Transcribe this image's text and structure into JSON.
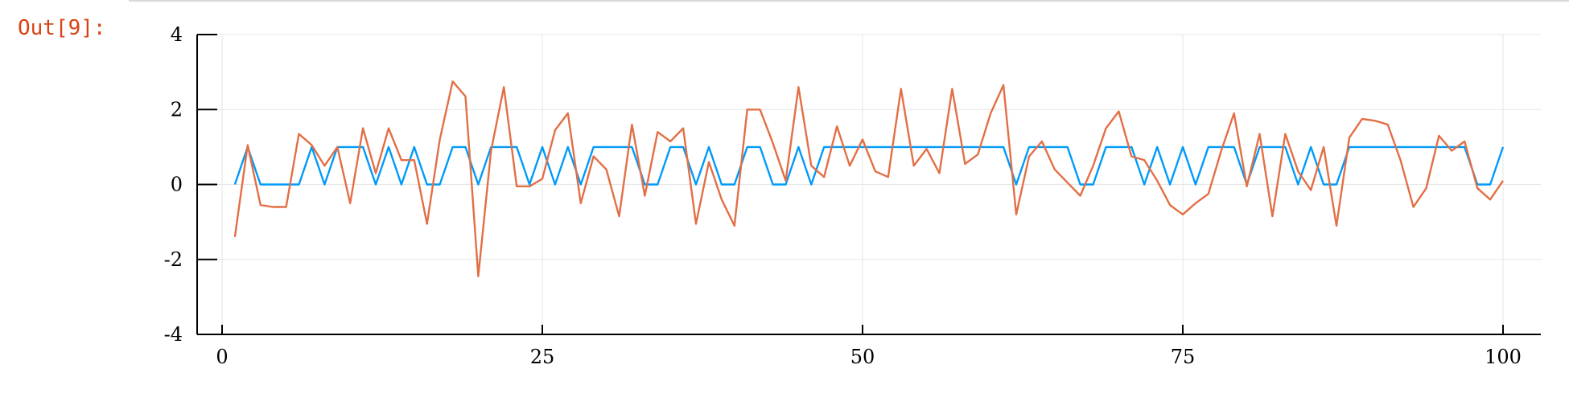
{
  "cell": {
    "prompt": "Out[9]:"
  },
  "colors": {
    "series1": "#009af9",
    "series2": "#e26f46",
    "grid": "#e6e6e6",
    "axis": "#000000"
  },
  "chart_data": {
    "type": "line",
    "title": "",
    "xlabel": "",
    "ylabel": "",
    "xlim": [
      0,
      100
    ],
    "ylim": [
      -4,
      4
    ],
    "xticks": [
      0,
      25,
      50,
      75,
      100
    ],
    "yticks": [
      -4,
      -2,
      0,
      2,
      4
    ],
    "grid": true,
    "legend": "none",
    "series": [
      {
        "color": "#009af9",
        "x": [
          1,
          2,
          3,
          4,
          5,
          6,
          7,
          8,
          9,
          10,
          11,
          12,
          13,
          14,
          15,
          16,
          17,
          18,
          19,
          20,
          21,
          22,
          23,
          24,
          25,
          26,
          27,
          28,
          29,
          30,
          31,
          32,
          33,
          34,
          35,
          36,
          37,
          38,
          39,
          40,
          41,
          42,
          43,
          44,
          45,
          46,
          47,
          48,
          49,
          50,
          51,
          52,
          53,
          54,
          55,
          56,
          57,
          58,
          59,
          60,
          61,
          62,
          63,
          64,
          65,
          66,
          67,
          68,
          69,
          70,
          71,
          72,
          73,
          74,
          75,
          76,
          77,
          78,
          79,
          80,
          81,
          82,
          83,
          84,
          85,
          86,
          87,
          88,
          89,
          90,
          91,
          92,
          93,
          94,
          95,
          96,
          97,
          98,
          99,
          100
        ],
        "values": [
          0,
          1,
          0,
          0,
          0,
          0,
          1,
          0,
          1,
          1,
          1,
          0,
          1,
          0,
          1,
          0,
          0,
          1,
          1,
          0,
          1,
          1,
          1,
          0,
          1,
          0,
          1,
          0,
          1,
          1,
          1,
          1,
          0,
          0,
          1,
          1,
          0,
          1,
          0,
          0,
          1,
          1,
          0,
          0,
          1,
          0,
          1,
          1,
          1,
          1,
          1,
          1,
          1,
          1,
          1,
          1,
          1,
          1,
          1,
          1,
          1,
          0,
          1,
          1,
          1,
          1,
          0,
          0,
          1,
          1,
          1,
          0,
          1,
          0,
          1,
          0,
          1,
          1,
          1,
          0,
          1,
          1,
          1,
          0,
          1,
          0,
          0,
          1,
          1,
          1,
          1,
          1,
          1,
          1,
          1,
          1,
          1,
          0,
          0,
          1
        ]
      },
      {
        "color": "#e26f46",
        "x": [
          1,
          2,
          3,
          4,
          5,
          6,
          7,
          8,
          9,
          10,
          11,
          12,
          13,
          14,
          15,
          16,
          17,
          18,
          19,
          20,
          21,
          22,
          23,
          24,
          25,
          26,
          27,
          28,
          29,
          30,
          31,
          32,
          33,
          34,
          35,
          36,
          37,
          38,
          39,
          40,
          41,
          42,
          43,
          44,
          45,
          46,
          47,
          48,
          49,
          50,
          51,
          52,
          53,
          54,
          55,
          56,
          57,
          58,
          59,
          60,
          61,
          62,
          63,
          64,
          65,
          66,
          67,
          68,
          69,
          70,
          71,
          72,
          73,
          74,
          75,
          76,
          77,
          78,
          79,
          80,
          81,
          82,
          83,
          84,
          85,
          86,
          87,
          88,
          89,
          90,
          91,
          92,
          93,
          94,
          95,
          96,
          97,
          98,
          99,
          100
        ],
        "values": [
          -1.4,
          1.05,
          -0.55,
          -0.6,
          -0.6,
          1.35,
          1.05,
          0.5,
          1.0,
          -0.5,
          1.5,
          0.3,
          1.5,
          0.65,
          0.65,
          -1.05,
          1.2,
          2.75,
          2.35,
          -2.45,
          0.9,
          2.6,
          -0.05,
          -0.05,
          0.15,
          1.45,
          1.9,
          -0.5,
          0.75,
          0.4,
          -0.85,
          1.6,
          -0.3,
          1.4,
          1.15,
          1.5,
          -1.05,
          0.6,
          -0.4,
          -1.1,
          2.0,
          2.0,
          1.1,
          0.1,
          2.6,
          0.5,
          0.2,
          1.55,
          0.5,
          1.2,
          0.35,
          0.2,
          2.55,
          0.5,
          0.95,
          0.3,
          2.55,
          0.55,
          0.8,
          1.9,
          2.65,
          -0.8,
          0.75,
          1.15,
          0.4,
          0.05,
          -0.3,
          0.5,
          1.5,
          1.95,
          0.75,
          0.65,
          0.1,
          -0.55,
          -0.8,
          -0.5,
          -0.25,
          0.9,
          1.9,
          -0.05,
          1.35,
          -0.85,
          1.35,
          0.35,
          -0.15,
          1.0,
          -1.1,
          1.25,
          1.75,
          1.7,
          1.6,
          0.65,
          -0.6,
          -0.1,
          1.3,
          0.9,
          1.15,
          -0.1,
          -0.4,
          0.1
        ]
      }
    ]
  }
}
